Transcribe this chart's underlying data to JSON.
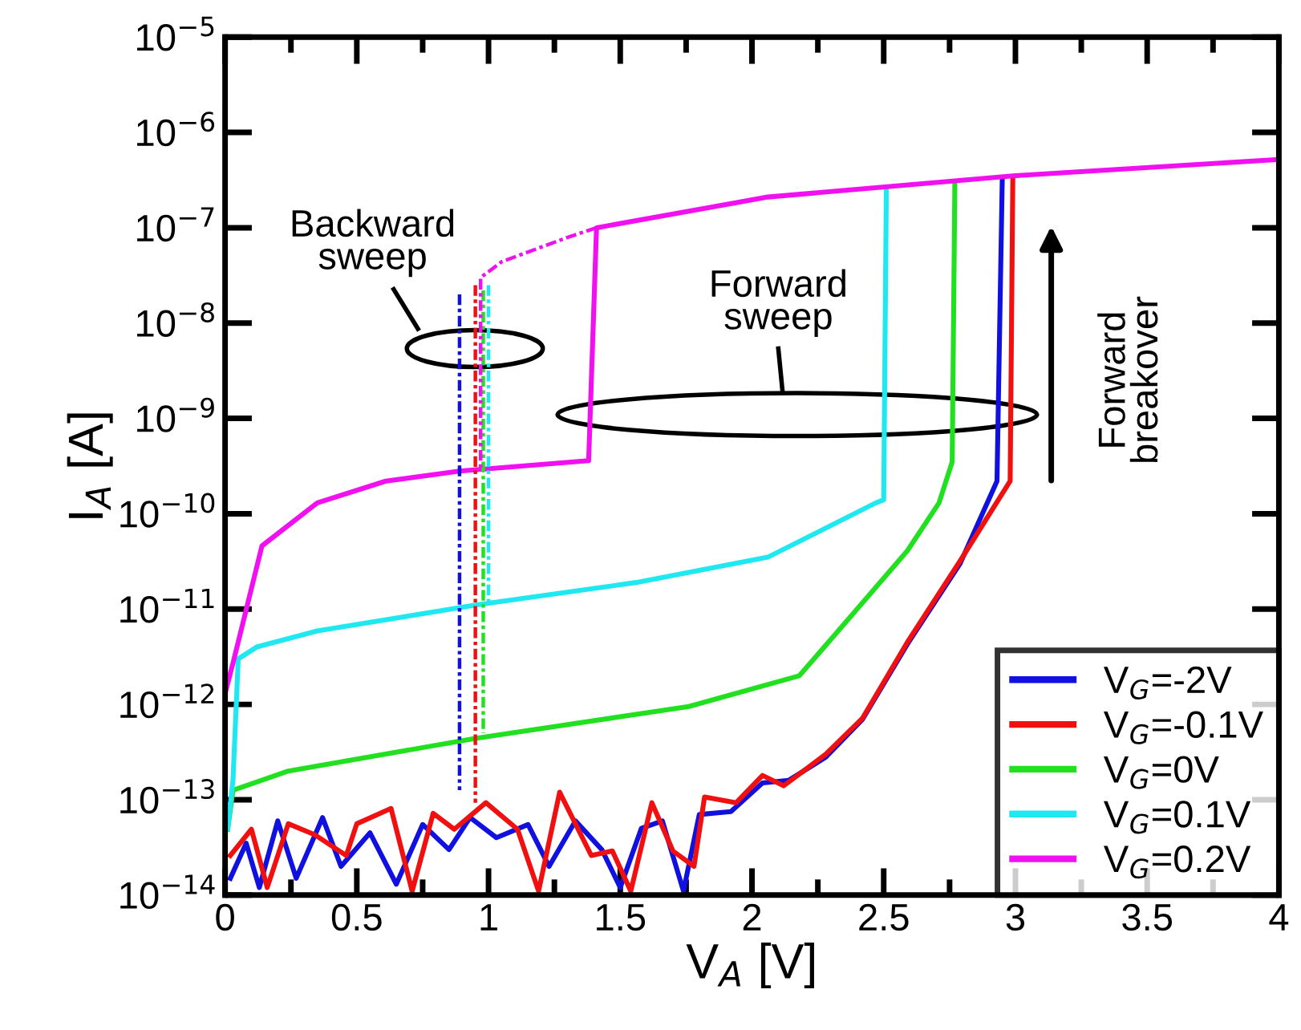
{
  "chart_data": {
    "type": "line",
    "xlabel": "V$_{A}$ [V]",
    "ylabel": "I$_{A}$ [A]",
    "log": "y",
    "grid": false,
    "legend": "bottom right",
    "line_style": "solid",
    "marker": "none",
    "xlim": [
      0,
      4
    ],
    "xticks": [
      0,
      0.5,
      1,
      1.5,
      2,
      2.5,
      3,
      3.5,
      4
    ],
    "ylim": [
      1e-14,
      1e-05
    ],
    "yticks": [
      {
        "value": 1e-14,
        "label": "10$^{−14}$"
      },
      {
        "value": 1e-13,
        "label": "10$^{−13}$"
      },
      {
        "value": 1e-12,
        "label": "10$^{−12}$"
      },
      {
        "value": 1e-11,
        "label": "10$^{−11}$"
      },
      {
        "value": 1e-10,
        "label": "10$^{−10}$"
      },
      {
        "value": 1e-09,
        "label": "10$^{−9}$"
      },
      {
        "value": 1e-08,
        "label": "10$^{−8}$"
      },
      {
        "value": 1e-07,
        "label": "10$^{−7}$"
      },
      {
        "value": 1e-06,
        "label": "10$^{−6}$"
      },
      {
        "value": 1e-05,
        "label": "10$^{−5}$"
      }
    ],
    "series": [
      {
        "name": "V$_{G}$=-2V",
        "color": "#1010e0",
        "x": [
          0.02,
          0.08,
          0.13,
          0.2,
          0.27,
          0.37,
          0.44,
          0.55,
          0.65,
          0.75,
          0.85,
          0.93,
          1.03,
          1.15,
          1.23,
          1.33,
          1.43,
          1.5,
          1.58,
          1.66,
          1.74,
          1.8,
          1.92,
          2.04,
          2.14,
          2.28,
          2.42,
          2.59,
          2.79,
          2.93,
          2.95
        ],
        "values": [
          1.5e-14,
          3.5e-14,
          1.2e-14,
          6e-14,
          1.5e-14,
          6.5e-14,
          2e-14,
          4.5e-14,
          1.3e-14,
          5.5e-14,
          3e-14,
          6.5e-14,
          4e-14,
          5.5e-14,
          2e-14,
          6e-14,
          3e-14,
          1.2e-14,
          5e-14,
          6e-14,
          1.1e-14,
          7e-14,
          7.5e-14,
          1.5e-13,
          1.6e-13,
          2.8e-13,
          7e-13,
          4.3e-12,
          3e-11,
          2.2e-10,
          3.2e-07
        ]
      },
      {
        "name": "V$_{G}$=-0.1V",
        "color": "#f01010",
        "x": [
          0.02,
          0.1,
          0.16,
          0.24,
          0.34,
          0.46,
          0.5,
          0.63,
          0.71,
          0.79,
          0.87,
          0.99,
          1.11,
          1.19,
          1.27,
          1.39,
          1.47,
          1.54,
          1.62,
          1.7,
          1.78,
          1.82,
          1.94,
          2.04,
          2.12,
          2.28,
          2.42,
          2.59,
          2.79,
          2.98,
          2.99
        ],
        "values": [
          2.6e-14,
          4.9e-14,
          1.2e-14,
          5.6e-14,
          4.3e-14,
          2.6e-14,
          5.6e-14,
          8.1e-14,
          1.1e-14,
          7.2e-14,
          4.9e-14,
          9.3e-14,
          4.9e-14,
          1.1e-14,
          1.2e-13,
          2.6e-14,
          2.9e-14,
          1.1e-14,
          9.3e-14,
          2.9e-14,
          2e-14,
          1.07e-13,
          9.3e-14,
          1.8e-13,
          1.4e-13,
          3e-13,
          7.2e-13,
          4.5e-12,
          3.2e-11,
          2.2e-10,
          3.2e-07
        ]
      },
      {
        "name": "V$_{G}$=0V",
        "color": "#20e020",
        "x": [
          0.01,
          0.03,
          0.24,
          0.95,
          1.76,
          2.18,
          2.38,
          2.59,
          2.71,
          2.76,
          2.77
        ],
        "values": [
          4.9e-14,
          1.26e-13,
          2e-13,
          4.4e-13,
          9.5e-13,
          2e-12,
          8.7e-12,
          4.1e-11,
          1.3e-10,
          3.5e-10,
          2.8e-07
        ]
      },
      {
        "name": "V$_{G}$=0.1V",
        "color": "#20e8f0",
        "x": [
          0.01,
          0.03,
          0.05,
          0.12,
          0.35,
          0.95,
          1.56,
          2.06,
          2.47,
          2.5,
          2.51
        ],
        "values": [
          5e-14,
          1.6e-13,
          3e-12,
          4e-12,
          5.9e-12,
          1.1e-11,
          1.9e-11,
          3.5e-11,
          1.3e-10,
          1.4e-10,
          2.5e-07
        ]
      },
      {
        "name": "V$_{G}$=0.2V",
        "color": "#f010f0",
        "x": [
          0.0,
          0.03,
          0.14,
          0.35,
          0.61,
          0.89,
          1.38,
          1.41,
          2.06,
          2.99,
          4.0
        ],
        "values": [
          1.3e-12,
          2.7e-12,
          4.6e-11,
          1.3e-10,
          2.2e-10,
          2.8e-10,
          3.6e-10,
          1e-07,
          2.1e-07,
          3.5e-07,
          5.2e-07
        ]
      },
      {
        "color": "#1010e0",
        "line_style": "dashed",
        "x": [
          0.89,
          0.89
        ],
        "values": [
          2e-08,
          1.26e-13
        ]
      },
      {
        "color": "#f01010",
        "line_style": "dashed",
        "x": [
          0.95,
          0.95
        ],
        "values": [
          2.5e-08,
          9.3e-14
        ]
      },
      {
        "color": "#20e020",
        "line_style": "dashed",
        "x": [
          0.98,
          0.98
        ],
        "values": [
          2.2e-08,
          5e-13
        ]
      },
      {
        "color": "#20e8f0",
        "line_style": "dashed",
        "x": [
          1.0,
          1.0
        ],
        "values": [
          2.5e-08,
          1.1e-11
        ]
      },
      {
        "color": "#f010f0",
        "line_style": "dashed",
        "x": [
          1.41,
          1.31,
          1.05,
          0.97,
          0.97
        ],
        "values": [
          1e-07,
          8.1e-08,
          4.4e-08,
          3e-08,
          2.8e-10
        ]
      }
    ],
    "annotations": [
      "Backward\nsweep",
      "Forward\nsweep",
      "Forward\nbreakover"
    ]
  }
}
